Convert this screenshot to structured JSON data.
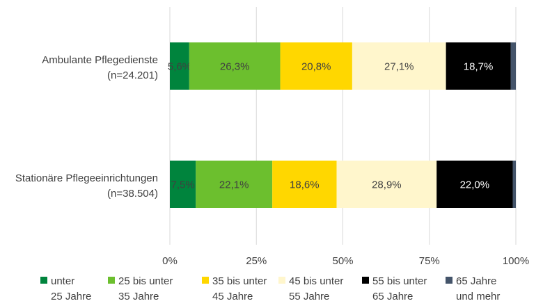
{
  "chart_data": {
    "type": "bar",
    "orientation": "horizontal",
    "stacked": true,
    "percent_stacked": true,
    "categories": [
      "Ambulante Pflegedienste\n(n=24.201)",
      "Stationäre Pflegeeinrichtungen\n(n=38.504)"
    ],
    "series": [
      {
        "name": "unter\n25 Jahre",
        "color": "#00843d",
        "values": [
          5.6,
          7.5
        ],
        "labels": [
          "5,6%",
          "7,5%"
        ]
      },
      {
        "name": "25  bis unter\n35 Jahre",
        "color": "#6cbf2e",
        "values": [
          26.3,
          22.1
        ],
        "labels": [
          "26,3%",
          "22,1%"
        ]
      },
      {
        "name": "35 bis unter\n45 Jahre",
        "color": "#ffd700",
        "values": [
          20.8,
          18.6
        ],
        "labels": [
          "20,8%",
          "18,6%"
        ]
      },
      {
        "name": "45 bis unter\n55 Jahre",
        "color": "#fff6cc",
        "values": [
          27.1,
          28.9
        ],
        "labels": [
          "27,1%",
          "28,9%"
        ]
      },
      {
        "name": "55 bis unter\n65 Jahre",
        "color": "#000000",
        "values": [
          18.7,
          22.0
        ],
        "labels": [
          "18,7%",
          "22,0%"
        ]
      },
      {
        "name": "65 Jahre\nund mehr",
        "color": "#44546a",
        "values": [
          1.5,
          0.9
        ],
        "labels": [
          "",
          ""
        ]
      }
    ],
    "xlim": [
      0,
      100
    ],
    "x_ticks": [
      "0%",
      "25%",
      "50%",
      "75%",
      "100%"
    ],
    "grid": true,
    "legend_position": "bottom",
    "title": "",
    "xlabel": "",
    "ylabel": ""
  }
}
